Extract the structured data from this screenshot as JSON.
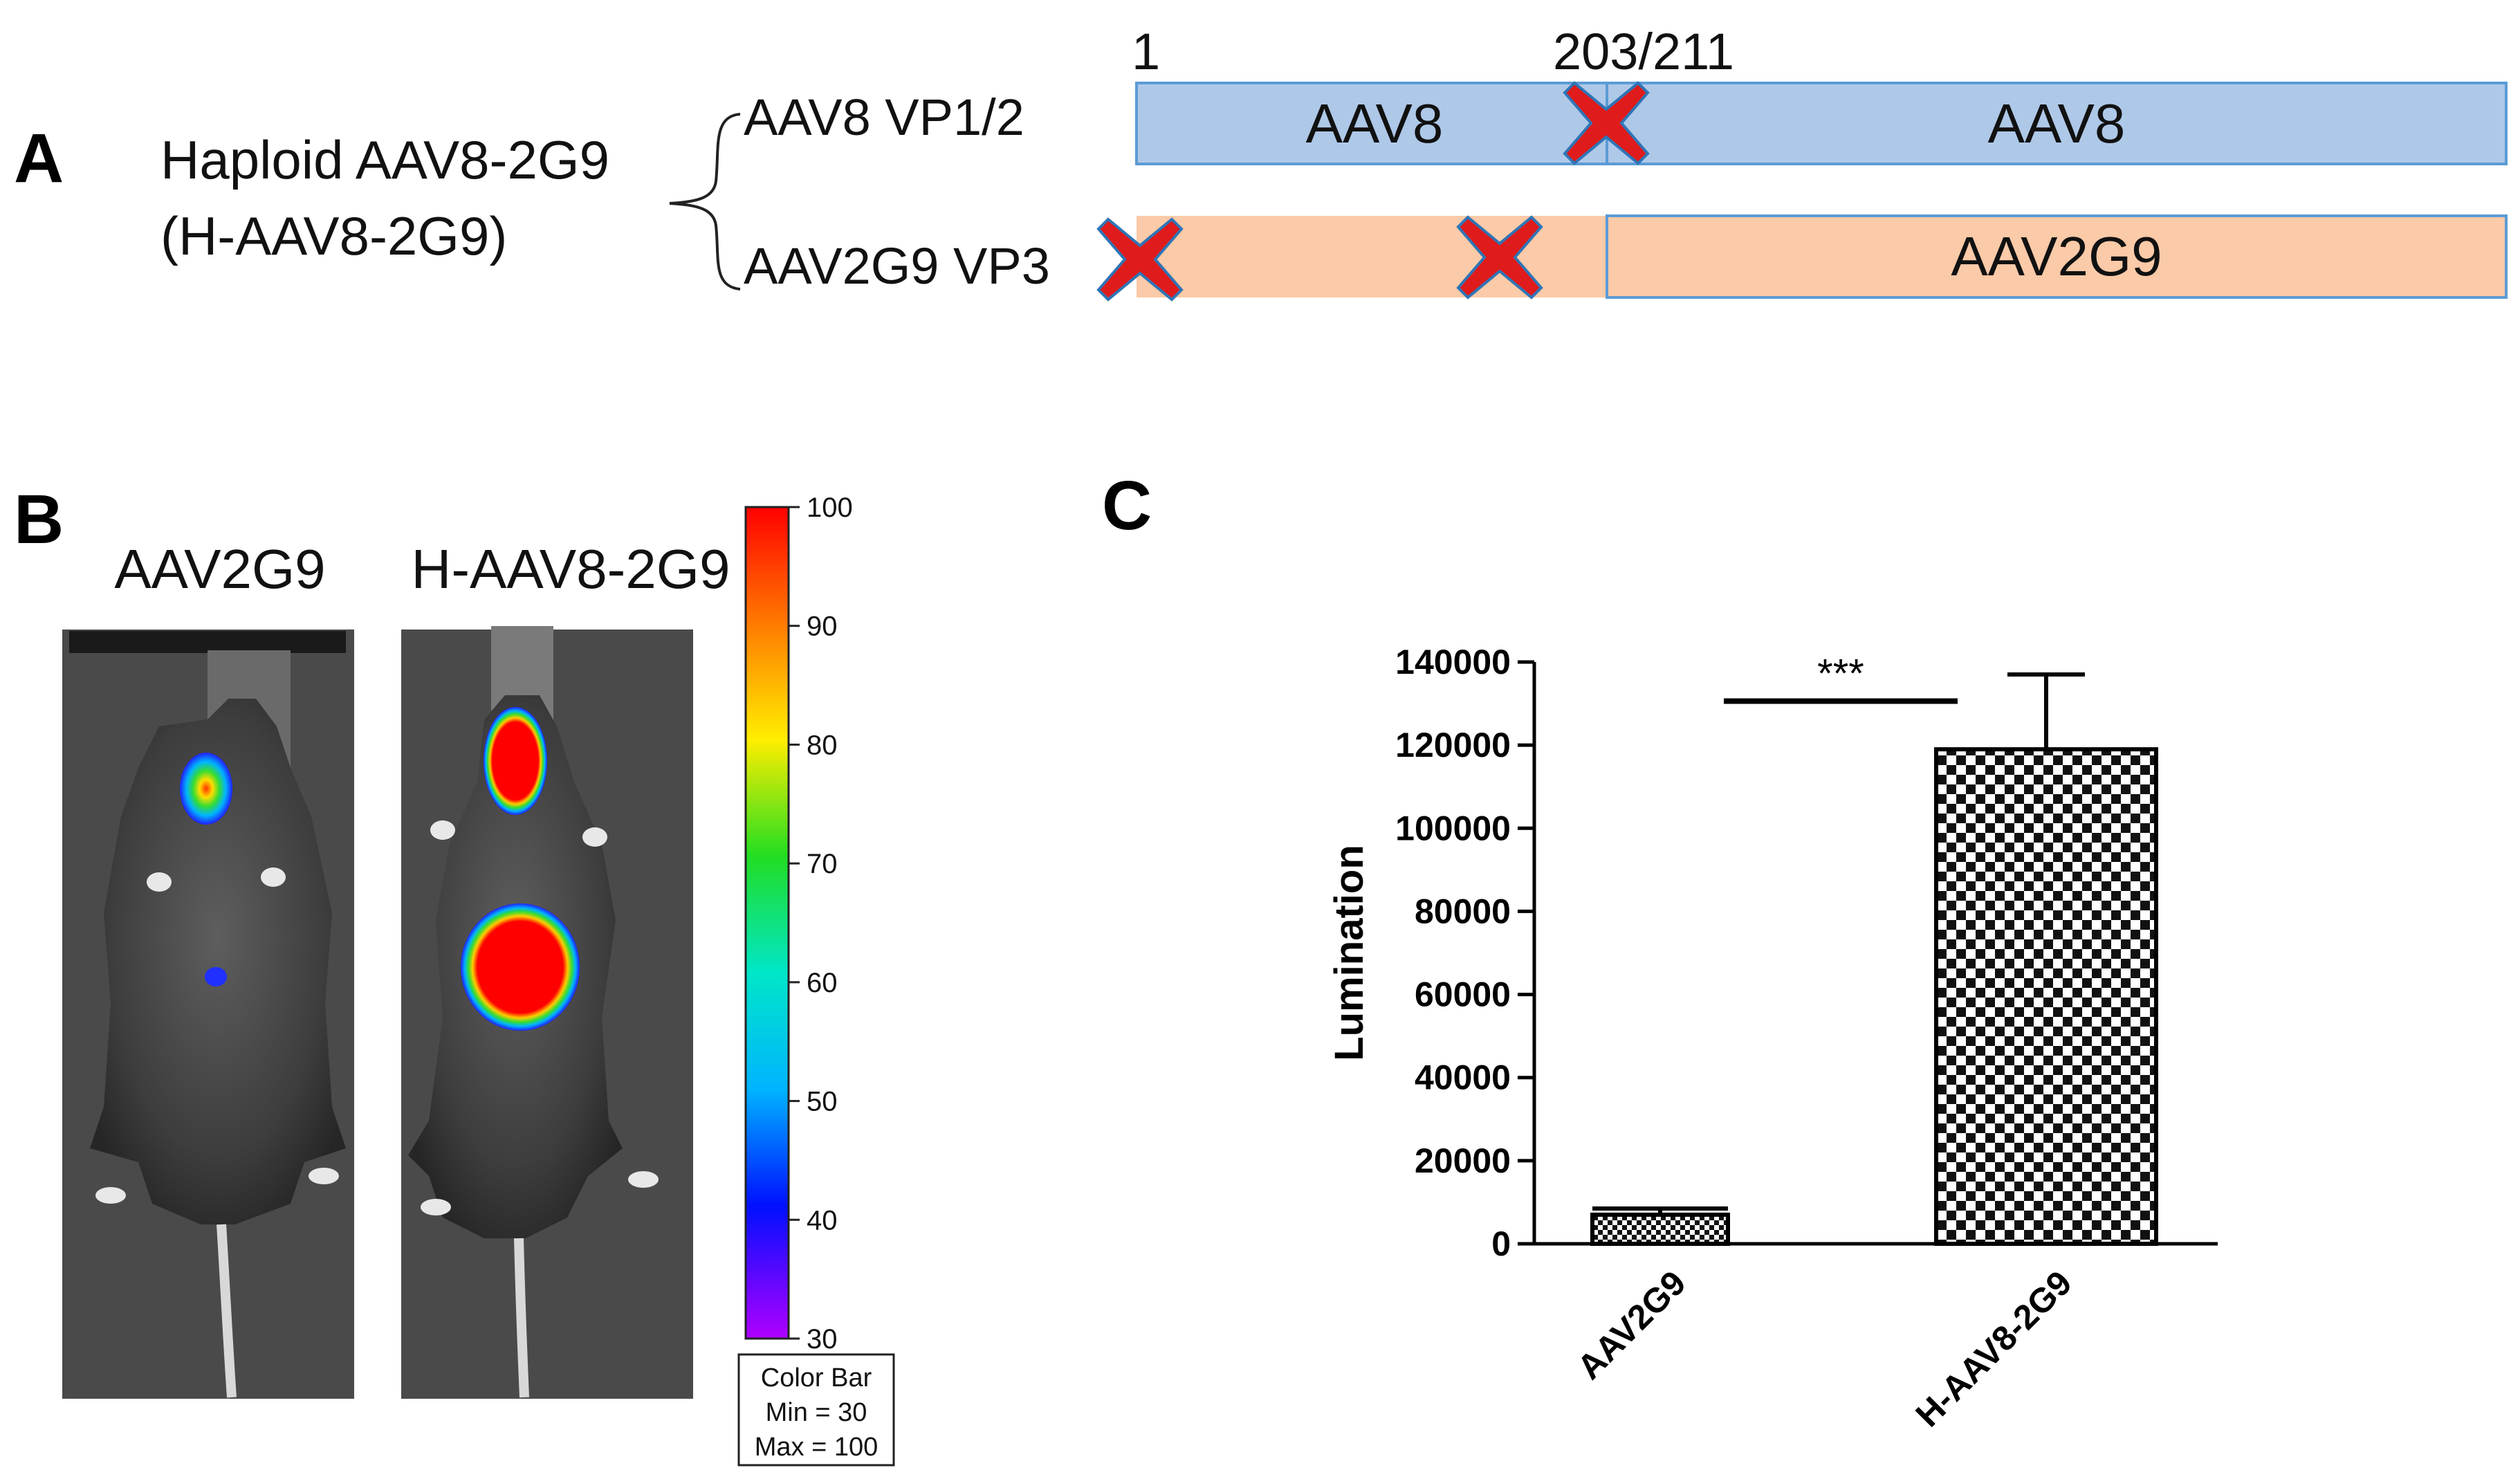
{
  "panel_a": {
    "label": "A",
    "construct_name_line1": "Haploid AAV8-2G9",
    "construct_name_line2": "(H-AAV8-2G9)",
    "row1_label": "AAV8 VP1/2",
    "row2_label": "AAV2G9 VP3",
    "pos_start": "1",
    "pos_junction": "203/211",
    "row1_seg1": "AAV8",
    "row1_seg2": "AAV8",
    "row2_seg2": "AAV2G9",
    "colors": {
      "aav8_fill": "#aec8e8",
      "aav8_stroke": "#5b9bd5",
      "aav2g9_fill": "#fbcaa8",
      "aav2g9_stroke": "#5b9bd5",
      "cross_fill": "#e01b1b",
      "cross_stroke": "#2e75b6"
    }
  },
  "panel_b": {
    "label": "B",
    "mouse1_label": "AAV2G9",
    "mouse2_label": "H-AAV8-2G9",
    "colorbar_ticks": [
      "100",
      "90",
      "80",
      "70",
      "60",
      "50",
      "40",
      "30"
    ],
    "colorbar_caption_title": "Color Bar",
    "colorbar_caption_min": "Min = 30",
    "colorbar_caption_max": "Max = 100"
  },
  "panel_c": {
    "label": "C",
    "significance": "***"
  },
  "chart_data": {
    "type": "bar",
    "categories": [
      "AAV2G9",
      "H-AAV8-2G9"
    ],
    "values": [
      7000,
      119000
    ],
    "errors": [
      1500,
      18000
    ],
    "ylabel": "Lumination",
    "xlabel": "",
    "ylim": [
      0,
      140000
    ],
    "yticks": [
      "0",
      "20000",
      "40000",
      "60000",
      "80000",
      "100000",
      "120000",
      "140000"
    ],
    "grid": false
  }
}
